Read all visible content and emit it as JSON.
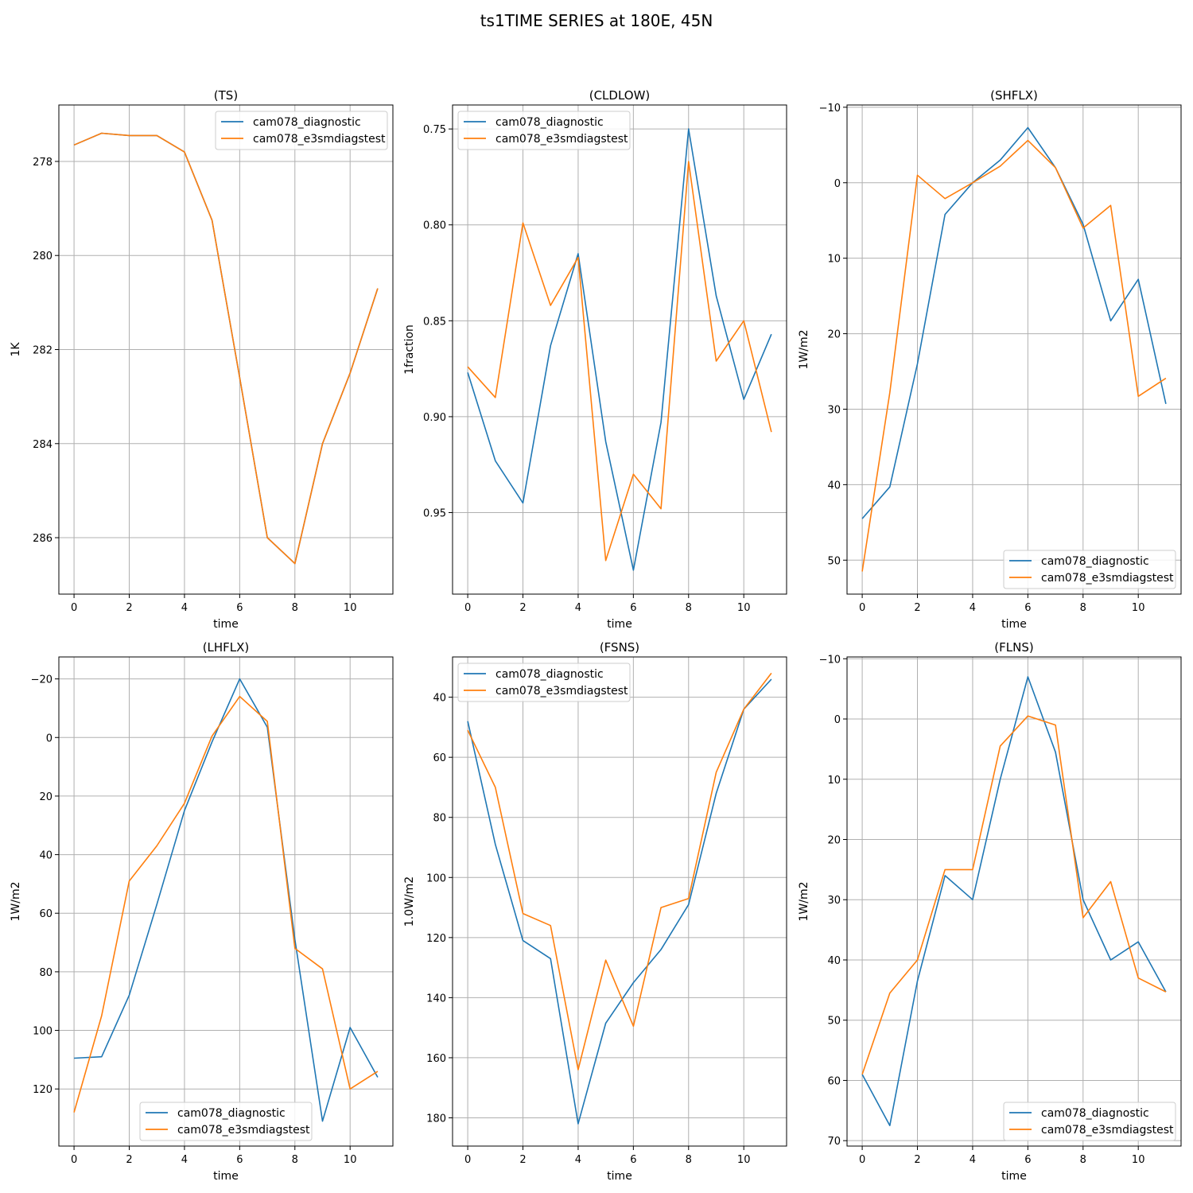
{
  "figure": {
    "title": "ts1TIME SERIES at 180E, 45N"
  },
  "colors": {
    "series_0": "#1f77b4",
    "series_1": "#ff7f0e",
    "grid": "#b0b0b0"
  },
  "chart_data": [
    {
      "type": "line",
      "title": "(TS)",
      "xlabel": "time",
      "ylabel": "1K",
      "y_inverted": true,
      "xlim": [
        -0.55,
        11.55
      ],
      "ylim": [
        276.8,
        287.2
      ],
      "xticks": [
        0,
        2,
        4,
        6,
        8,
        10
      ],
      "yticks": [
        278,
        280,
        282,
        284,
        286
      ],
      "legend_loc": "upper right",
      "grid": true,
      "x": [
        0,
        1,
        2,
        3,
        4,
        5,
        6,
        7,
        8,
        9,
        10,
        11
      ],
      "series": [
        {
          "name": "cam078_diagnostic",
          "values": [
            277.65,
            277.4,
            277.45,
            277.45,
            277.8,
            279.25,
            282.6,
            286.0,
            286.55,
            284.0,
            282.5,
            280.7
          ]
        },
        {
          "name": "cam078_e3smdiagstest",
          "values": [
            277.65,
            277.4,
            277.45,
            277.45,
            277.8,
            279.25,
            282.6,
            286.0,
            286.55,
            284.0,
            282.5,
            280.7
          ]
        }
      ]
    },
    {
      "type": "line",
      "title": "(CLDLOW)",
      "xlabel": "time",
      "ylabel": "1fraction",
      "y_inverted": true,
      "xlim": [
        -0.55,
        11.55
      ],
      "ylim": [
        0.7375,
        0.9925
      ],
      "xticks": [
        0,
        2,
        4,
        6,
        8,
        10
      ],
      "yticks": [
        0.75,
        0.8,
        0.85,
        0.9,
        0.95
      ],
      "ytick_decimals": 2,
      "legend_loc": "upper left",
      "grid": true,
      "x": [
        0,
        1,
        2,
        3,
        4,
        5,
        6,
        7,
        8,
        9,
        10,
        11
      ],
      "series": [
        {
          "name": "cam078_diagnostic",
          "values": [
            0.877,
            0.923,
            0.945,
            0.863,
            0.815,
            0.913,
            0.98,
            0.903,
            0.75,
            0.837,
            0.891,
            0.857
          ]
        },
        {
          "name": "cam078_e3smdiagstest",
          "values": [
            0.874,
            0.89,
            0.799,
            0.842,
            0.817,
            0.975,
            0.93,
            0.948,
            0.767,
            0.871,
            0.85,
            0.908
          ]
        }
      ]
    },
    {
      "type": "line",
      "title": "(SHFLX)",
      "xlabel": "time",
      "ylabel": "1W/m2",
      "y_inverted": true,
      "xlim": [
        -0.55,
        11.55
      ],
      "ylim": [
        -10.3,
        54.5
      ],
      "xticks": [
        0,
        2,
        4,
        6,
        8,
        10
      ],
      "yticks": [
        -10,
        0,
        10,
        20,
        30,
        40,
        50
      ],
      "legend_loc": "lower right",
      "grid": true,
      "x": [
        0,
        1,
        2,
        3,
        4,
        5,
        6,
        7,
        8,
        9,
        10,
        11
      ],
      "series": [
        {
          "name": "cam078_diagnostic",
          "values": [
            44.5,
            40.3,
            24.0,
            4.2,
            0.0,
            -3.0,
            -7.3,
            -2.0,
            5.5,
            18.3,
            12.8,
            29.3
          ]
        },
        {
          "name": "cam078_e3smdiagstest",
          "values": [
            51.5,
            27.8,
            -1.0,
            2.1,
            0.0,
            -2.2,
            -5.6,
            -2.0,
            6.0,
            3.0,
            28.3,
            25.9
          ]
        }
      ]
    },
    {
      "type": "line",
      "title": "(LHFLX)",
      "xlabel": "time",
      "ylabel": "1W/m2",
      "y_inverted": true,
      "xlim": [
        -0.55,
        11.55
      ],
      "ylim": [
        -27.5,
        139.5
      ],
      "xticks": [
        0,
        2,
        4,
        6,
        8,
        10
      ],
      "yticks": [
        -20,
        0,
        20,
        40,
        60,
        80,
        100,
        120
      ],
      "legend_loc": "lower center",
      "grid": true,
      "x": [
        0,
        1,
        2,
        3,
        4,
        5,
        6,
        7,
        8,
        9,
        10,
        11
      ],
      "series": [
        {
          "name": "cam078_diagnostic",
          "values": [
            109.5,
            109.0,
            88.0,
            57.0,
            25.0,
            1.5,
            -20.0,
            -3.5,
            69.0,
            131.0,
            99.0,
            116.0
          ]
        },
        {
          "name": "cam078_e3smdiagstest",
          "values": [
            128.0,
            95.0,
            49.0,
            37.0,
            22.5,
            -0.5,
            -14.0,
            -5.5,
            72.0,
            79.0,
            120.0,
            114.0
          ]
        }
      ]
    },
    {
      "type": "line",
      "title": "(FSNS)",
      "xlabel": "time",
      "ylabel": "1.0W/m2",
      "y_inverted": true,
      "xlim": [
        -0.55,
        11.55
      ],
      "ylim": [
        26.6,
        189.4
      ],
      "xticks": [
        0,
        2,
        4,
        6,
        8,
        10
      ],
      "yticks": [
        40,
        60,
        80,
        100,
        120,
        140,
        160,
        180
      ],
      "legend_loc": "upper left",
      "grid": true,
      "x": [
        0,
        1,
        2,
        3,
        4,
        5,
        6,
        7,
        8,
        9,
        10,
        11
      ],
      "series": [
        {
          "name": "cam078_diagnostic",
          "values": [
            48.0,
            89.0,
            121.0,
            127.0,
            182.0,
            148.5,
            135.0,
            124.0,
            109.0,
            72.0,
            44.0,
            34.0
          ]
        },
        {
          "name": "cam078_e3smdiagstest",
          "values": [
            51.0,
            70.0,
            112.0,
            116.0,
            164.0,
            127.5,
            149.5,
            110.0,
            107.0,
            65.0,
            44.0,
            32.0
          ]
        }
      ]
    },
    {
      "type": "line",
      "title": "(FLNS)",
      "xlabel": "time",
      "ylabel": "1W/m2",
      "y_inverted": true,
      "xlim": [
        -0.55,
        11.55
      ],
      "ylim": [
        -10.3,
        70.9
      ],
      "xticks": [
        0,
        2,
        4,
        6,
        8,
        10
      ],
      "yticks": [
        -10,
        0,
        10,
        20,
        30,
        40,
        50,
        60,
        70
      ],
      "legend_loc": "lower right",
      "grid": true,
      "x": [
        0,
        1,
        2,
        3,
        4,
        5,
        6,
        7,
        8,
        9,
        10,
        11
      ],
      "series": [
        {
          "name": "cam078_diagnostic",
          "values": [
            59.0,
            67.5,
            43.5,
            26.0,
            30.0,
            10.0,
            -7.0,
            5.5,
            30.0,
            40.0,
            37.0,
            45.3
          ]
        },
        {
          "name": "cam078_e3smdiagstest",
          "values": [
            59.0,
            45.5,
            40.0,
            25.0,
            25.0,
            4.5,
            -0.5,
            1.0,
            33.0,
            27.0,
            43.0,
            45.3
          ]
        }
      ]
    }
  ]
}
